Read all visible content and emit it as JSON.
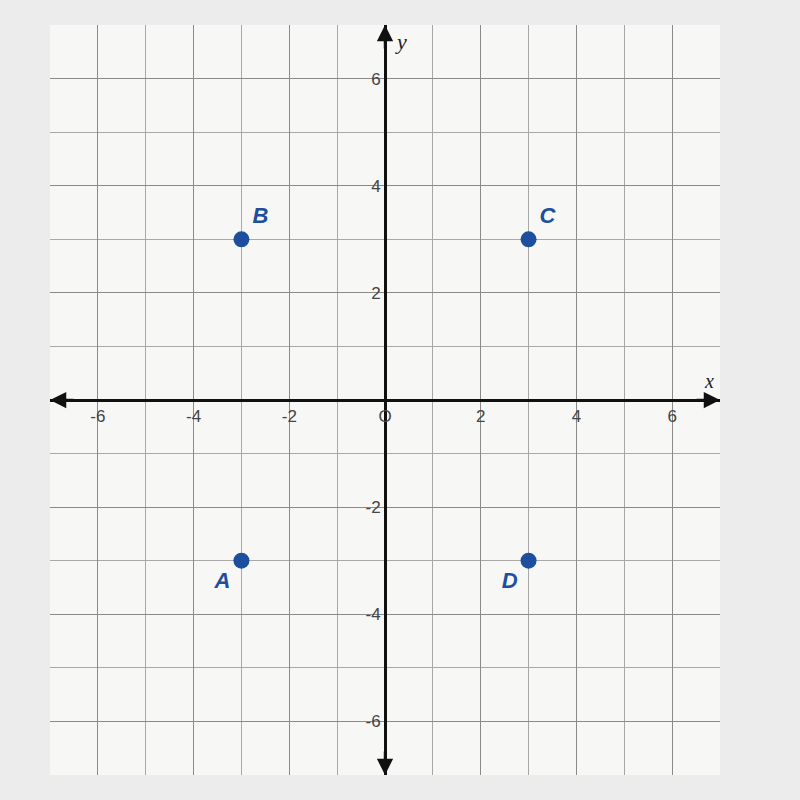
{
  "chart_data": {
    "type": "scatter",
    "x": [
      -3,
      -3,
      3,
      3
    ],
    "values": [
      -3,
      3,
      3,
      -3
    ],
    "labels": [
      "A",
      "B",
      "C",
      "D"
    ],
    "color": "#1d4f9e",
    "marker": "circle",
    "x_label": "x",
    "y_label": "y",
    "xlim": [
      -7,
      7
    ],
    "ylim": [
      -7,
      7
    ],
    "xticks": [
      -6,
      -4,
      -2,
      {
        "value": 0,
        "label": "O"
      },
      2,
      4,
      6
    ],
    "yticks": [
      -6,
      -4,
      -2,
      2,
      4,
      6
    ],
    "grid": true
  }
}
